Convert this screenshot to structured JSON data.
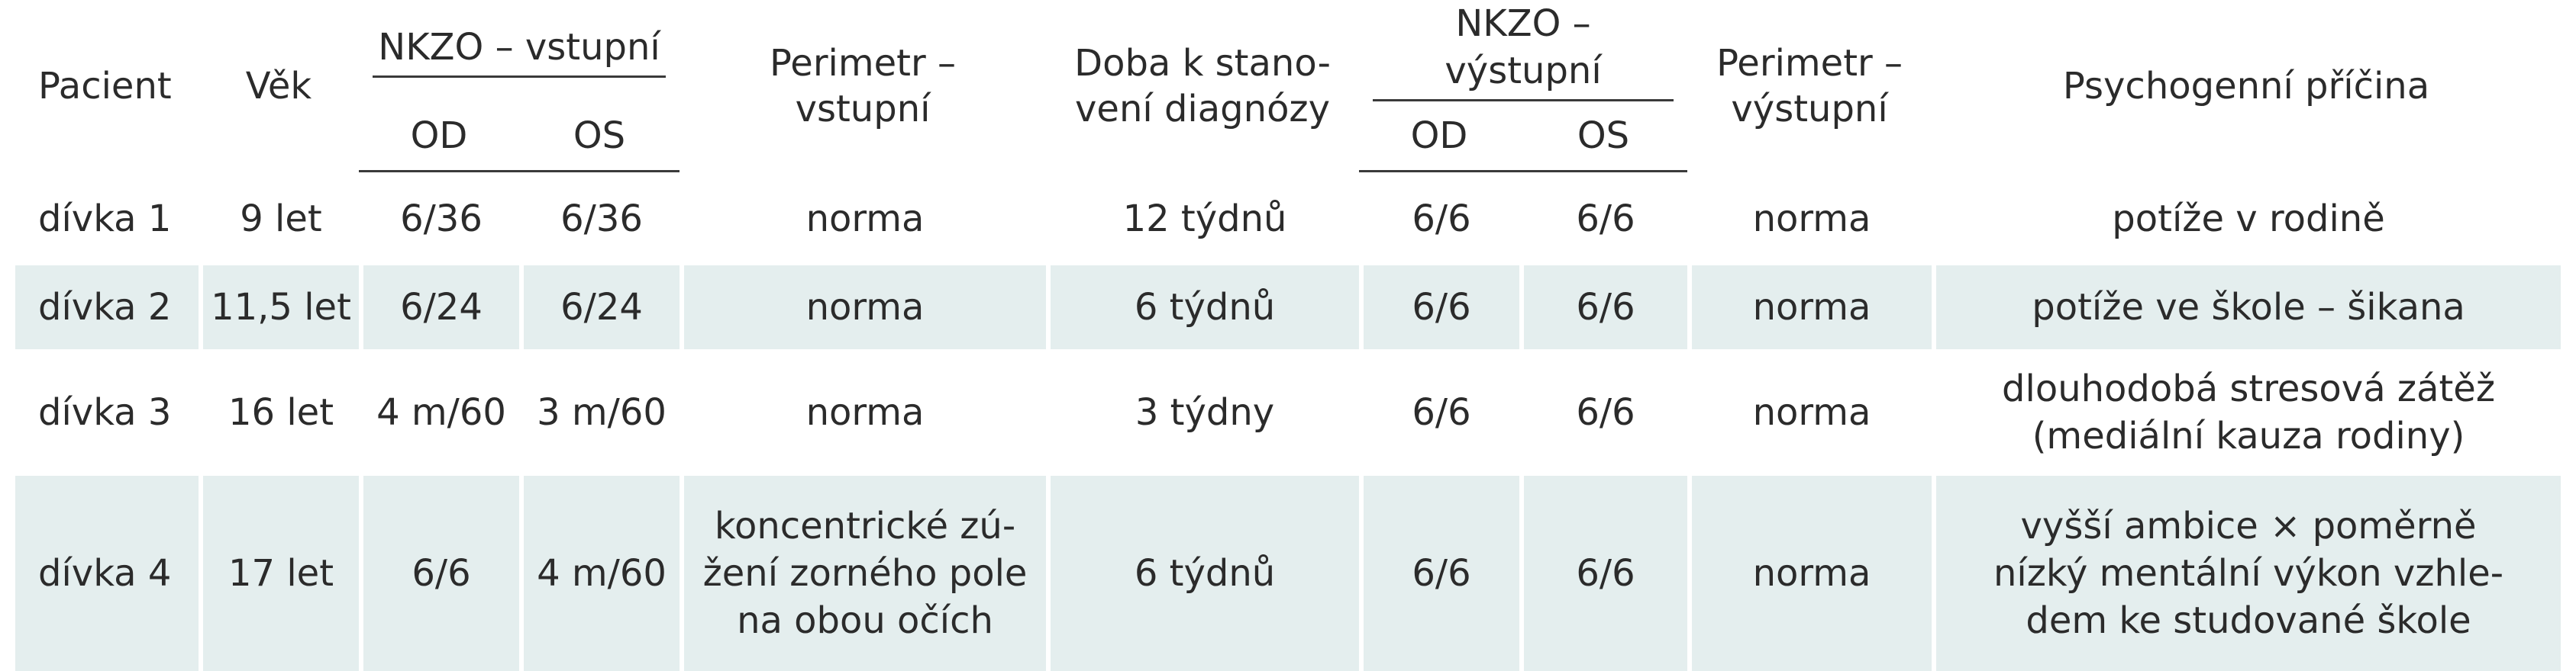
{
  "header": {
    "pacient": "Pacient",
    "vek": "Věk",
    "nkzo_vstupni": "NKZO – vstupní",
    "od": "OD",
    "os": "OS",
    "perimetr_vstupni_l1": "Perimetr –",
    "perimetr_vstupni_l2": "vstupní",
    "doba_l1": "Doba k stano-",
    "doba_l2": "vení diagnózy",
    "nkzo_vystupni": "NKZO – výstupní",
    "perimetr_vystupni_l1": "Perimetr –",
    "perimetr_vystupni_l2": "výstupní",
    "pricina": "Psychogenní příčina"
  },
  "rows": [
    {
      "pacient": "dívka 1",
      "vek": "9 let",
      "nkzo_in_od": "6/36",
      "nkzo_in_os": "6/36",
      "perimetr_in": [
        "norma"
      ],
      "doba": "12 týdnů",
      "nkzo_out_od": "6/6",
      "nkzo_out_os": "6/6",
      "perimetr_out": "norma",
      "pricina": [
        "potíže v rodině"
      ]
    },
    {
      "pacient": "dívka 2",
      "vek": "11,5 let",
      "nkzo_in_od": "6/24",
      "nkzo_in_os": "6/24",
      "perimetr_in": [
        "norma"
      ],
      "doba": "6 týdnů",
      "nkzo_out_od": "6/6",
      "nkzo_out_os": "6/6",
      "perimetr_out": "norma",
      "pricina": [
        "potíže ve škole – šikana"
      ]
    },
    {
      "pacient": "dívka 3",
      "vek": "16 let",
      "nkzo_in_od": "4 m/60",
      "nkzo_in_os": "3 m/60",
      "perimetr_in": [
        "norma"
      ],
      "doba": "3 týdny",
      "nkzo_out_od": "6/6",
      "nkzo_out_os": "6/6",
      "perimetr_out": "norma",
      "pricina": [
        "dlouhodobá stresová zátěž",
        "(mediální kauza rodiny)"
      ]
    },
    {
      "pacient": "dívka 4",
      "vek": "17 let",
      "nkzo_in_od": "6/6",
      "nkzo_in_os": "4 m/60",
      "perimetr_in": [
        "koncentrické zú-",
        "žení zorného pole",
        "na obou očích"
      ],
      "doba": "6 týdnů",
      "nkzo_out_od": "6/6",
      "nkzo_out_os": "6/6",
      "perimetr_out": "norma",
      "pricina": [
        "vyšší ambice × poměrně",
        "nízký mentální výkon vzhle-",
        "dem ke studované škole"
      ]
    }
  ],
  "colors": {
    "row_shade": "#e4eeee",
    "text": "#2b2b2b",
    "rule": "#3a3a3a"
  }
}
